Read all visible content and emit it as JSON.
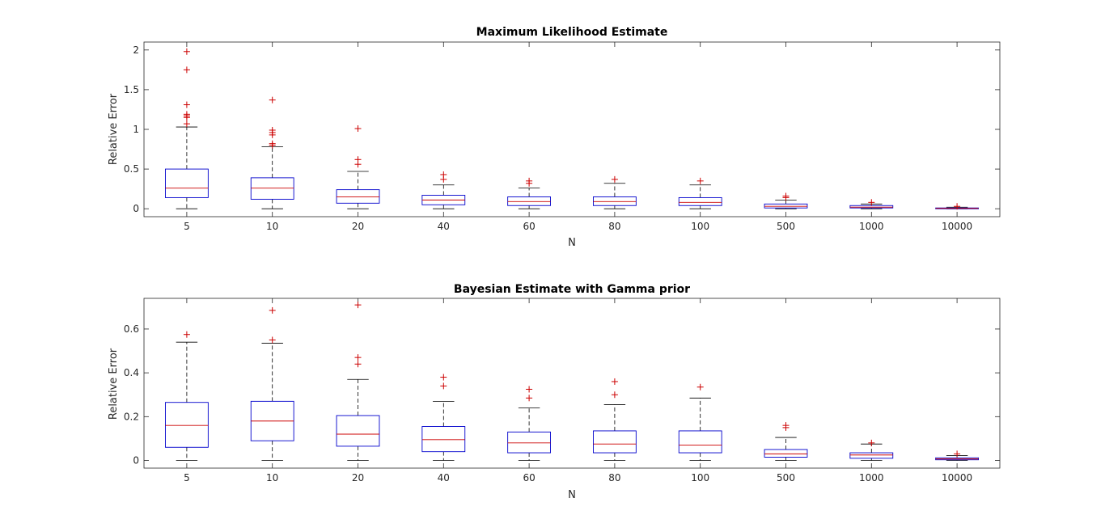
{
  "chart_data": [
    {
      "type": "box",
      "title": "Maximum Likelihood Estimate",
      "xlabel": "N",
      "ylabel": "Relative Error",
      "categories": [
        "5",
        "10",
        "20",
        "40",
        "60",
        "80",
        "100",
        "500",
        "1000",
        "10000"
      ],
      "ylim": [
        -0.1,
        2.1
      ],
      "yticks": [
        0,
        0.5,
        1,
        1.5,
        2
      ],
      "ytick_labels": [
        "0",
        "0.5",
        "1",
        "1.5",
        "2"
      ],
      "boxes": [
        {
          "min": 0.0,
          "q1": 0.14,
          "median": 0.26,
          "q3": 0.5,
          "max": 1.03,
          "outliers": [
            1.07,
            1.15,
            1.17,
            1.19,
            1.31,
            1.75,
            1.98
          ]
        },
        {
          "min": 0.0,
          "q1": 0.12,
          "median": 0.26,
          "q3": 0.39,
          "max": 0.78,
          "outliers": [
            0.8,
            0.82,
            0.93,
            0.96,
            0.99,
            1.37
          ]
        },
        {
          "min": 0.0,
          "q1": 0.07,
          "median": 0.15,
          "q3": 0.24,
          "max": 0.47,
          "outliers": [
            0.56,
            0.62,
            1.01
          ]
        },
        {
          "min": 0.0,
          "q1": 0.05,
          "median": 0.11,
          "q3": 0.17,
          "max": 0.3,
          "outliers": [
            0.37,
            0.43
          ]
        },
        {
          "min": 0.0,
          "q1": 0.04,
          "median": 0.09,
          "q3": 0.15,
          "max": 0.26,
          "outliers": [
            0.32,
            0.35
          ]
        },
        {
          "min": 0.0,
          "q1": 0.04,
          "median": 0.09,
          "q3": 0.15,
          "max": 0.32,
          "outliers": [
            0.37
          ]
        },
        {
          "min": 0.0,
          "q1": 0.04,
          "median": 0.08,
          "q3": 0.14,
          "max": 0.3,
          "outliers": [
            0.35
          ]
        },
        {
          "min": 0.0,
          "q1": 0.01,
          "median": 0.03,
          "q3": 0.06,
          "max": 0.11,
          "outliers": [
            0.14,
            0.16
          ]
        },
        {
          "min": 0.0,
          "q1": 0.01,
          "median": 0.02,
          "q3": 0.04,
          "max": 0.06,
          "outliers": [
            0.08
          ]
        },
        {
          "min": 0.0,
          "q1": 0.0,
          "median": 0.005,
          "q3": 0.01,
          "max": 0.02,
          "outliers": [
            0.03
          ]
        }
      ]
    },
    {
      "type": "box",
      "title": "Bayesian Estimate with Gamma prior",
      "xlabel": "N",
      "ylabel": "Relative Error",
      "categories": [
        "5",
        "10",
        "20",
        "40",
        "60",
        "80",
        "100",
        "500",
        "1000",
        "10000"
      ],
      "ylim": [
        -0.035,
        0.74
      ],
      "yticks": [
        0,
        0.2,
        0.4,
        0.6
      ],
      "ytick_labels": [
        "0",
        "0.2",
        "0.4",
        "0.6"
      ],
      "boxes": [
        {
          "min": 0.0,
          "q1": 0.06,
          "median": 0.16,
          "q3": 0.265,
          "max": 0.54,
          "outliers": [
            0.575
          ]
        },
        {
          "min": 0.0,
          "q1": 0.09,
          "median": 0.18,
          "q3": 0.27,
          "max": 0.535,
          "outliers": [
            0.55,
            0.685
          ]
        },
        {
          "min": 0.0,
          "q1": 0.065,
          "median": 0.12,
          "q3": 0.205,
          "max": 0.37,
          "outliers": [
            0.44,
            0.47,
            0.71
          ]
        },
        {
          "min": 0.0,
          "q1": 0.04,
          "median": 0.095,
          "q3": 0.155,
          "max": 0.27,
          "outliers": [
            0.34,
            0.38
          ]
        },
        {
          "min": 0.0,
          "q1": 0.035,
          "median": 0.08,
          "q3": 0.13,
          "max": 0.24,
          "outliers": [
            0.285,
            0.325
          ]
        },
        {
          "min": 0.0,
          "q1": 0.035,
          "median": 0.075,
          "q3": 0.135,
          "max": 0.255,
          "outliers": [
            0.3,
            0.36
          ]
        },
        {
          "min": 0.0,
          "q1": 0.035,
          "median": 0.07,
          "q3": 0.135,
          "max": 0.285,
          "outliers": [
            0.335
          ]
        },
        {
          "min": 0.0,
          "q1": 0.015,
          "median": 0.03,
          "q3": 0.05,
          "max": 0.105,
          "outliers": [
            0.15,
            0.16
          ]
        },
        {
          "min": 0.0,
          "q1": 0.01,
          "median": 0.025,
          "q3": 0.035,
          "max": 0.075,
          "outliers": [
            0.08
          ]
        },
        {
          "min": 0.0,
          "q1": 0.003,
          "median": 0.007,
          "q3": 0.012,
          "max": 0.022,
          "outliers": [
            0.03
          ]
        }
      ]
    }
  ],
  "colors": {
    "box": "#0000cc",
    "median": "#cc0000",
    "whisker": "#000000",
    "outlier": "#cc0000",
    "axes": "#262626"
  }
}
